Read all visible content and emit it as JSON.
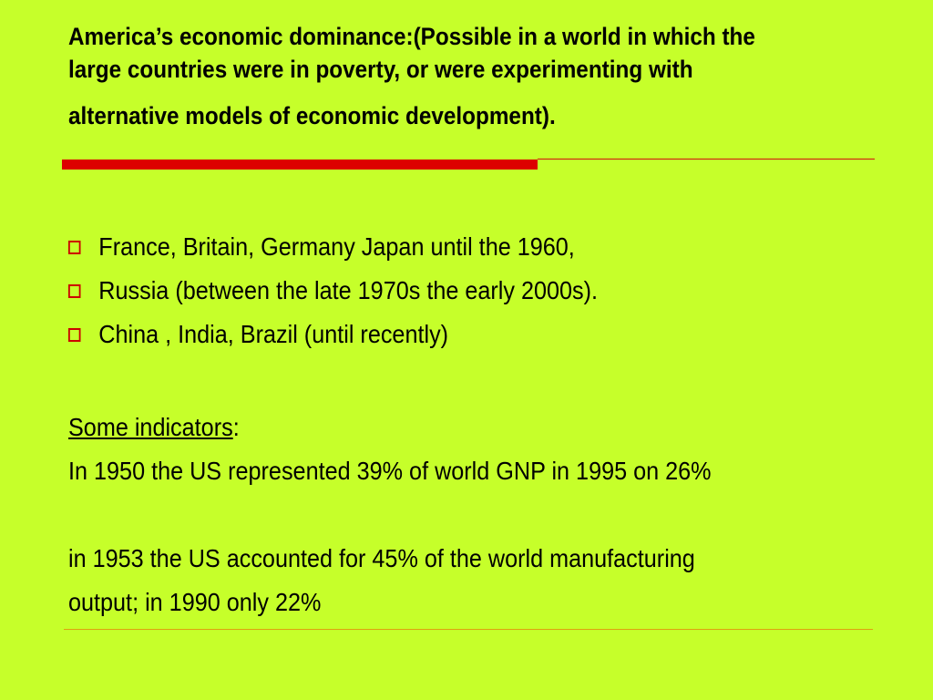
{
  "slide": {
    "title_line1": "America’s economic dominance:(Possible in a world in which the",
    "title_line2": "large countries were in poverty, or were experimenting with",
    "title_line3": "alternative models of economic development).",
    "bullets": [
      "France, Britain, Germany Japan until the 1960,",
      "Russia (between the late 1970s the early 2000s).",
      "China , India, Brazil (until recently)"
    ],
    "indicators_label": "Some indicators",
    "indicators_colon": ":",
    "indicator_1": "In 1950 the US represented 39% of world GNP in 1995 on 26%",
    "indicator_2_line1": "in 1953 the US accounted for 45% of the world manufacturing",
    "indicator_2_line2": "output; in 1990 only 22%"
  },
  "colors": {
    "background": "#c6ff2a",
    "accent_rule": "#dd0000",
    "bullet_box": "#cc0000"
  },
  "icons": {
    "bullet": "square-outline-bullet-icon"
  }
}
